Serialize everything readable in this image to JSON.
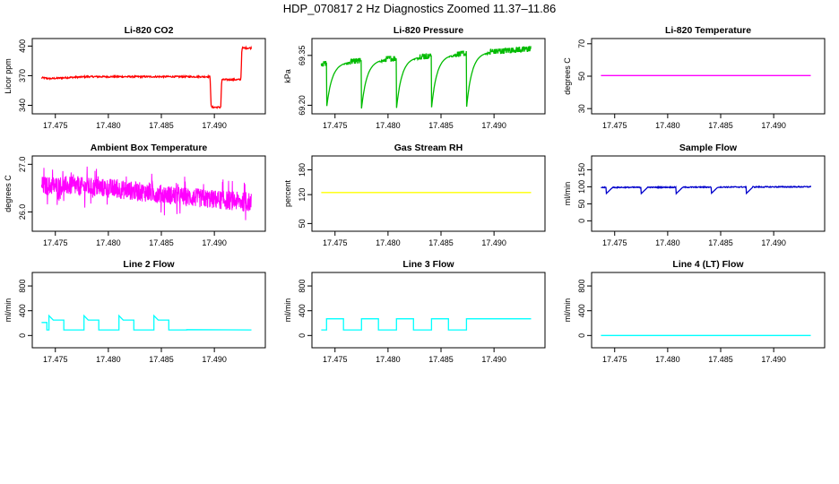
{
  "figure_title": "HDP_070817  2 Hz Diagnostics Zoomed 11.37–11.86",
  "chart_data": [
    {
      "type": "line",
      "title": "Li-820 CO2",
      "ylabel": "Licor ppm",
      "xticks": [
        "17.475",
        "17.480",
        "17.485",
        "17.490"
      ],
      "xtick_values": [
        17.475,
        17.48,
        17.485,
        17.49
      ],
      "yticks": [
        "340",
        "370",
        "400"
      ],
      "ytick_values": [
        340,
        370,
        400
      ],
      "xlim": [
        17.4735,
        17.4943
      ],
      "ylim": [
        335,
        404
      ],
      "color": "#ff0000",
      "style": "noise",
      "points": [
        [
          17.4737,
          368
        ],
        [
          17.4745,
          367
        ],
        [
          17.476,
          368
        ],
        [
          17.478,
          369
        ],
        [
          17.48,
          369
        ],
        [
          17.482,
          369
        ],
        [
          17.484,
          369
        ],
        [
          17.486,
          369
        ],
        [
          17.488,
          369
        ],
        [
          17.4896,
          369
        ],
        [
          17.4897,
          338
        ],
        [
          17.4906,
          338
        ],
        [
          17.4907,
          366
        ],
        [
          17.4925,
          366
        ],
        [
          17.4926,
          398
        ],
        [
          17.4935,
          398
        ]
      ]
    },
    {
      "type": "line",
      "title": "Li-820 Pressure",
      "ylabel": "kPa",
      "xticks": [
        "17.475",
        "17.480",
        "17.485",
        "17.490"
      ],
      "xtick_values": [
        17.475,
        17.48,
        17.485,
        17.49
      ],
      "yticks": [
        "69.20",
        "69.35"
      ],
      "ytick_values": [
        69.2,
        69.35
      ],
      "xlim": [
        17.4735,
        17.4943
      ],
      "ylim": [
        69.185,
        69.39
      ],
      "color": "#00bb00",
      "style": "sawtooth",
      "dips": [
        17.4742,
        17.4775,
        17.4808,
        17.4841,
        17.4874
      ],
      "dip_min": 69.19,
      "base_start": 69.325,
      "base_end": 69.37
    },
    {
      "type": "line",
      "title": "Li-820 Temperature",
      "ylabel": "degrees C",
      "xticks": [
        "17.475",
        "17.480",
        "17.485",
        "17.490"
      ],
      "xtick_values": [
        17.475,
        17.48,
        17.485,
        17.49
      ],
      "yticks": [
        "30",
        "50",
        "70"
      ],
      "ytick_values": [
        30,
        50,
        70
      ],
      "xlim": [
        17.4735,
        17.4943
      ],
      "ylim": [
        29,
        71
      ],
      "color": "#ff00ff",
      "style": "flat",
      "points": [
        [
          17.4737,
          50.4
        ],
        [
          17.4935,
          50.4
        ]
      ]
    },
    {
      "type": "line",
      "title": "Ambient Box Temperature",
      "ylabel": "degrees C",
      "xticks": [
        "17.475",
        "17.480",
        "17.485",
        "17.490"
      ],
      "xtick_values": [
        17.475,
        17.48,
        17.485,
        17.49
      ],
      "yticks": [
        "26.0",
        "27.0"
      ],
      "ytick_values": [
        26.0,
        27.0
      ],
      "xlim": [
        17.4735,
        17.4943
      ],
      "ylim": [
        25.67,
        27.1
      ],
      "color": "#ff00ff",
      "style": "noise",
      "points": [
        [
          17.4737,
          26.55
        ],
        [
          17.476,
          26.55
        ],
        [
          17.48,
          26.5
        ],
        [
          17.484,
          26.4
        ],
        [
          17.488,
          26.3
        ],
        [
          17.4935,
          26.2
        ]
      ],
      "amplitude": 0.2
    },
    {
      "type": "line",
      "title": "Gas Stream RH",
      "ylabel": "percent",
      "xticks": [
        "17.475",
        "17.480",
        "17.485",
        "17.490"
      ],
      "xtick_values": [
        17.475,
        17.48,
        17.485,
        17.49
      ],
      "yticks": [
        "50",
        "120",
        "180"
      ],
      "ytick_values": [
        50,
        120,
        180
      ],
      "xlim": [
        17.4735,
        17.4943
      ],
      "ylim": [
        40,
        205
      ],
      "color": "#ffff00",
      "style": "flat",
      "points": [
        [
          17.4737,
          125
        ],
        [
          17.4935,
          125
        ]
      ]
    },
    {
      "type": "line",
      "title": "Sample Flow",
      "ylabel": "ml/min",
      "xticks": [
        "17.475",
        "17.480",
        "17.485",
        "17.490"
      ],
      "xtick_values": [
        17.475,
        17.48,
        17.485,
        17.49
      ],
      "yticks": [
        "0",
        "50",
        "100",
        "150"
      ],
      "ytick_values": [
        0,
        50,
        100,
        150
      ],
      "xlim": [
        17.4735,
        17.4943
      ],
      "ylim": [
        -20,
        180
      ],
      "color": "#0000cc",
      "style": "dips",
      "points": [
        [
          17.4737,
          98
        ],
        [
          17.4935,
          100
        ]
      ],
      "dips": [
        17.4742,
        17.4775,
        17.4808,
        17.4841,
        17.4874
      ],
      "dip_value": 80
    },
    {
      "type": "line",
      "title": "Line 2 Flow",
      "ylabel": "ml/min",
      "xticks": [
        "17.475",
        "17.480",
        "17.485",
        "17.490"
      ],
      "xtick_values": [
        17.475,
        17.48,
        17.485,
        17.49
      ],
      "yticks": [
        "0",
        "400",
        "800"
      ],
      "ytick_values": [
        0,
        400,
        800
      ],
      "xlim": [
        17.4735,
        17.4943
      ],
      "ylim": [
        -140,
        960
      ],
      "color": "#00ffff",
      "style": "pulses",
      "base": 210,
      "low": 90,
      "spike": 320,
      "plateau": 250,
      "cycles": [
        [
          17.4742,
          17.4758,
          17.4775
        ],
        [
          17.4775,
          17.4791,
          17.4808
        ],
        [
          17.4808,
          17.4824,
          17.4841
        ],
        [
          17.4841,
          17.4857,
          17.4874
        ]
      ],
      "tail": [
        [
          17.4874,
          95
        ],
        [
          17.4935,
          90
        ]
      ]
    },
    {
      "type": "line",
      "title": "Line 3 Flow",
      "ylabel": "ml/min",
      "xticks": [
        "17.475",
        "17.480",
        "17.485",
        "17.490"
      ],
      "xtick_values": [
        17.475,
        17.48,
        17.485,
        17.49
      ],
      "yticks": [
        "0",
        "400",
        "800"
      ],
      "ytick_values": [
        0,
        400,
        800
      ],
      "xlim": [
        17.4735,
        17.4943
      ],
      "ylim": [
        -140,
        960
      ],
      "color": "#00ffff",
      "style": "steps",
      "points": [
        [
          17.4737,
          90
        ],
        [
          17.4742,
          90
        ],
        [
          17.4742,
          270
        ],
        [
          17.4758,
          270
        ],
        [
          17.4758,
          90
        ],
        [
          17.4775,
          90
        ],
        [
          17.4775,
          270
        ],
        [
          17.4791,
          270
        ],
        [
          17.4791,
          90
        ],
        [
          17.4808,
          90
        ],
        [
          17.4808,
          270
        ],
        [
          17.4824,
          270
        ],
        [
          17.4824,
          90
        ],
        [
          17.4841,
          90
        ],
        [
          17.4841,
          270
        ],
        [
          17.4857,
          270
        ],
        [
          17.4857,
          90
        ],
        [
          17.4874,
          90
        ],
        [
          17.4874,
          270
        ],
        [
          17.4935,
          270
        ]
      ]
    },
    {
      "type": "line",
      "title": "Line 4 (LT) Flow",
      "ylabel": "ml/min",
      "xticks": [
        "17.475",
        "17.480",
        "17.485",
        "17.490"
      ],
      "xtick_values": [
        17.475,
        17.48,
        17.485,
        17.49
      ],
      "yticks": [
        "0",
        "400",
        "800"
      ],
      "ytick_values": [
        0,
        400,
        800
      ],
      "xlim": [
        17.4735,
        17.4943
      ],
      "ylim": [
        -140,
        960
      ],
      "color": "#00ffff",
      "style": "flat",
      "points": [
        [
          17.4737,
          0
        ],
        [
          17.4935,
          0
        ]
      ]
    }
  ]
}
